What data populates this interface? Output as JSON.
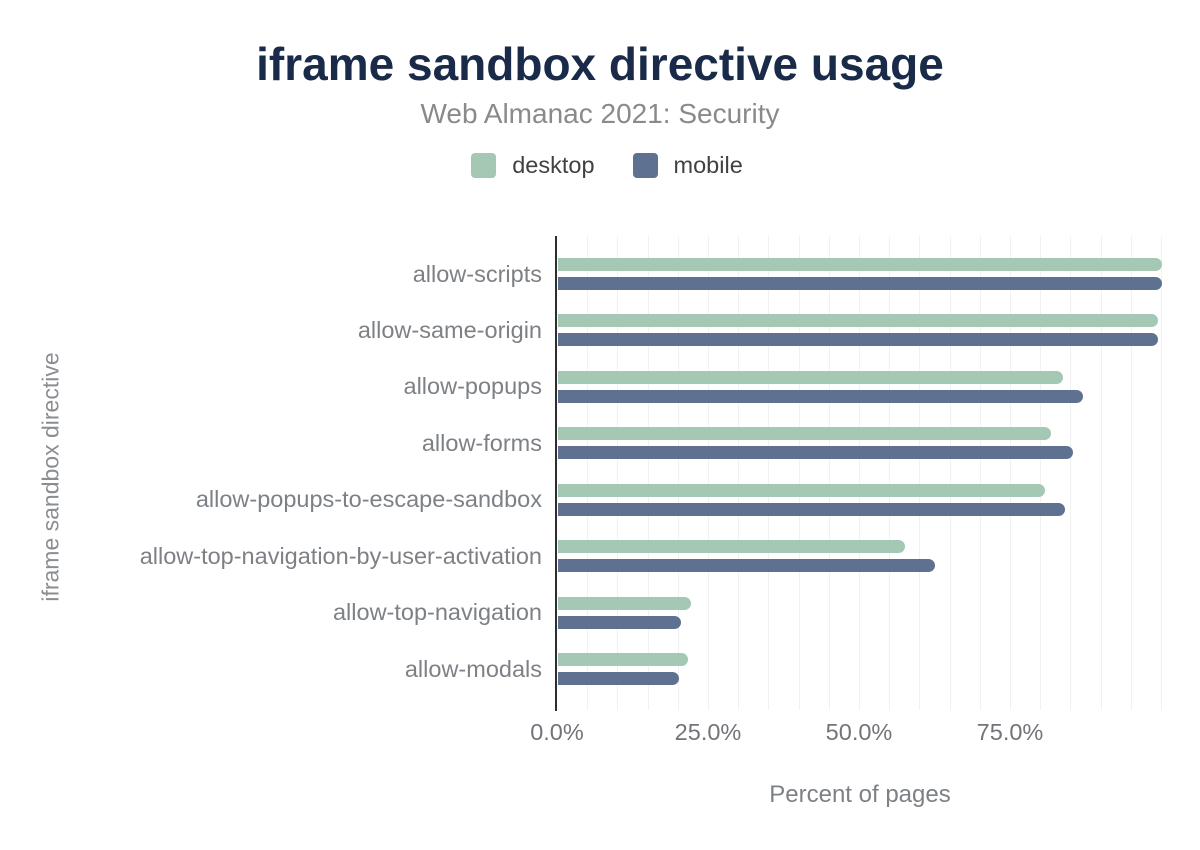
{
  "title": "iframe sandbox directive usage",
  "subtitle": "Web Almanac 2021: Security",
  "x_axis_title": "Percent of pages",
  "y_axis_title": "iframe sandbox directive",
  "chart_data": {
    "type": "bar",
    "orientation": "horizontal",
    "title": "iframe sandbox directive usage",
    "subtitle": "Web Almanac 2021: Security",
    "categories": [
      "allow-scripts",
      "allow-same-origin",
      "allow-popups",
      "allow-forms",
      "allow-popups-to-escape-sandbox",
      "allow-top-navigation-by-user-activation",
      "allow-top-navigation",
      "allow-modals"
    ],
    "series": [
      {
        "name": "desktop",
        "color": "#a4c8b4",
        "values": [
          99.97,
          99.3,
          83.6,
          81.6,
          80.6,
          57.4,
          22.0,
          21.6
        ]
      },
      {
        "name": "mobile",
        "color": "#5e7190",
        "values": [
          99.97,
          99.3,
          87.0,
          85.3,
          83.9,
          62.4,
          20.4,
          20.0
        ]
      }
    ],
    "xlabel": "Percent of pages",
    "ylabel": "iframe sandbox directive",
    "xlim": [
      0,
      100
    ],
    "xtick_labels": [
      "0.0%",
      "25.0%",
      "50.0%",
      "75.0%"
    ],
    "xtick_values": [
      0,
      25,
      50,
      75
    ],
    "grid": "vertical minor gridlines every 5%",
    "legend_position": "top"
  }
}
